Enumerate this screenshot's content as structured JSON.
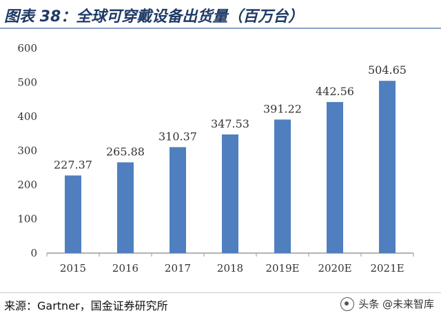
{
  "header": {
    "title": "图表 38：全球可穿戴设备出货量（百万台）"
  },
  "footer": {
    "source": "来源：Gartner，国金证券研究所",
    "watermark": "头条 @未来智库"
  },
  "chart_data": {
    "type": "bar",
    "title": "",
    "xlabel": "",
    "ylabel": "",
    "categories": [
      "2015",
      "2016",
      "2017",
      "2018",
      "2019E",
      "2020E",
      "2021E"
    ],
    "values": [
      227.37,
      265.88,
      310.37,
      347.53,
      391.22,
      442.56,
      504.65
    ],
    "value_labels": [
      "227.37",
      "265.88",
      "310.37",
      "347.53",
      "391.22",
      "442.56",
      "504.65"
    ],
    "ylim": [
      0,
      600
    ],
    "yticks": [
      0,
      100,
      200,
      300,
      400,
      500,
      600
    ],
    "grid": false,
    "legend": "none",
    "bar_color": "#4f7fbf",
    "axis_color": "#9a9a9a",
    "text_color": "#333333"
  }
}
